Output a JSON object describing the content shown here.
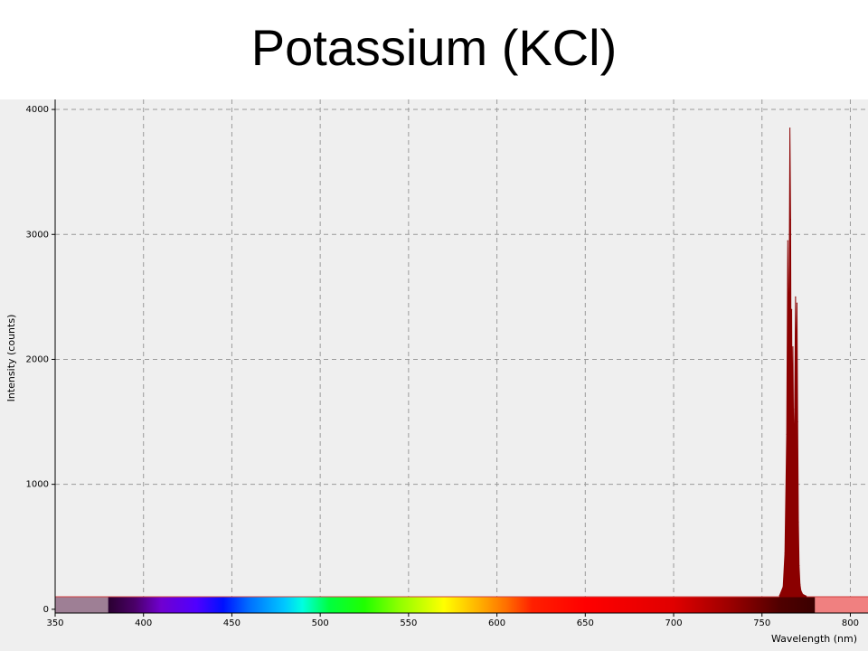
{
  "slide": {
    "title": "Potassium (KCl)"
  },
  "chart_data": {
    "type": "line",
    "title": "Potassium (KCl)",
    "xlabel": "Wavelength (nm)",
    "ylabel": "Intensity (counts)",
    "xlim": [
      350,
      810
    ],
    "ylim": [
      -30,
      4080
    ],
    "xticks": [
      350,
      400,
      450,
      500,
      550,
      600,
      650,
      700,
      750,
      800
    ],
    "yticks": [
      0,
      1000,
      2000,
      3000,
      4000
    ],
    "grid": true,
    "baseline": 100,
    "visible_range": [
      380,
      780
    ],
    "series": [
      {
        "color": "#8b0000",
        "x": [
          760,
          762,
          763,
          764,
          764.6,
          765.2,
          765.8,
          766.2,
          766.5,
          766.8,
          767.1,
          767.5,
          768,
          768.5,
          769,
          769.4,
          769.8,
          770.2,
          770.6,
          771,
          771.5,
          772,
          773,
          775
        ],
        "y": [
          110,
          180,
          450,
          1400,
          2950,
          2000,
          3850,
          3120,
          1700,
          2400,
          1300,
          2100,
          1200,
          1600,
          2500,
          1800,
          2450,
          1500,
          700,
          350,
          200,
          150,
          120,
          105
        ]
      }
    ]
  }
}
